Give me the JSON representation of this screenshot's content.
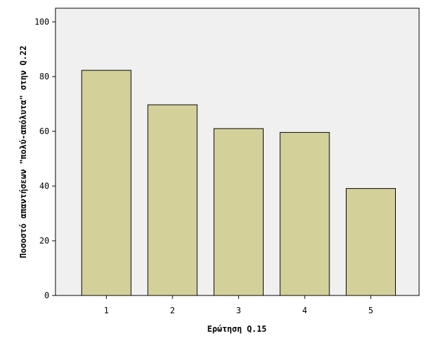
{
  "chart_data": {
    "type": "bar",
    "categories": [
      "1",
      "2",
      "3",
      "4",
      "5"
    ],
    "values": [
      82.3,
      69.7,
      61.0,
      59.6,
      39.1
    ],
    "xlabel": "Ερώτηση Q.15",
    "ylabel": "Ποσοστό απαντήσεων \"πολύ-απόλυτα\" στην Q.22",
    "ylim": [
      0,
      105
    ],
    "yticks": [
      0,
      20,
      40,
      60,
      80,
      100
    ],
    "grid": false,
    "legend": "none",
    "colors": {
      "plot_background": "#f0f0f0",
      "bar_fill": "#d4d09a",
      "bar_stroke": "#000000",
      "axis": "#000000"
    }
  }
}
